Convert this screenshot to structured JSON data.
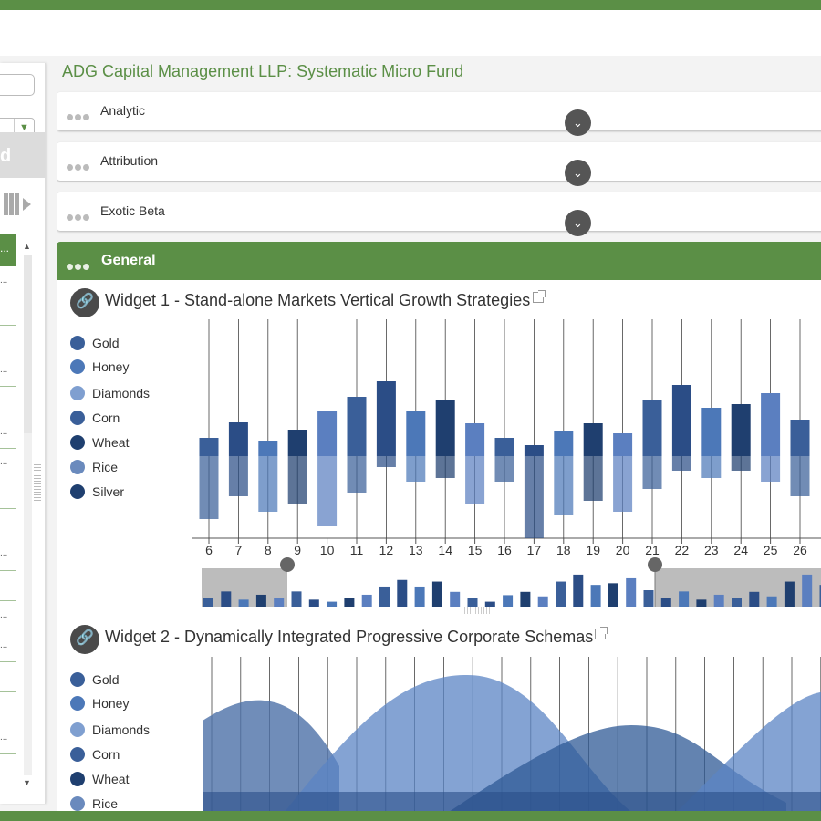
{
  "fund_title": "ADG Capital Management LLP: Systematic Micro Fund",
  "sidebar": {
    "band_letter": "d",
    "row_marker": "...",
    "scroll_up": "▲",
    "scroll_down": "▼",
    "select_arrow": "▼"
  },
  "panels": [
    {
      "label": "Analytic"
    },
    {
      "label": "Attribution"
    },
    {
      "label": "Exotic Beta"
    }
  ],
  "chevron_glyph": "⌄",
  "general": {
    "label": "General",
    "link_glyph": "🔗"
  },
  "colors": {
    "brand_green": "#5b8f46",
    "series": [
      "#3a5f99",
      "#4c78b8",
      "#7f9fd0",
      "#3a5f99",
      "#1f3f6f",
      "#6a8abd",
      "#1f3f6f"
    ]
  },
  "legend": [
    "Gold",
    "Honey",
    "Diamonds",
    "Corn",
    "Wheat",
    "Rice",
    "Silver"
  ],
  "widget1": {
    "title": "Widget 1 - Stand-alone Markets Vertical Growth Strategies"
  },
  "widget2": {
    "title": "Widget 2 - Dynamically Integrated Progressive Corporate Schemas"
  },
  "chart_data": [
    {
      "type": "bar",
      "categories": [
        "6",
        "7",
        "8",
        "9",
        "10",
        "11",
        "12",
        "13",
        "14",
        "15",
        "16",
        "17",
        "18",
        "19",
        "20",
        "21",
        "22",
        "23",
        "24",
        "25",
        "26"
      ],
      "series": [
        {
          "name": "upper",
          "values": [
            20,
            37,
            17,
            29,
            49,
            65,
            82,
            49,
            61,
            36,
            20,
            12,
            28,
            36,
            25,
            61,
            78,
            53,
            57,
            69,
            40
          ]
        },
        {
          "name": "lower",
          "values": [
            -69,
            -44,
            -61,
            -53,
            -77,
            -40,
            -12,
            -28,
            -24,
            -53,
            -28,
            -90,
            -65,
            -49,
            -61,
            -36,
            -16,
            -24,
            -16,
            -28,
            -44
          ]
        }
      ],
      "ylim": [
        -90,
        85
      ],
      "grid": "vertical"
    },
    {
      "type": "area",
      "series": [
        {
          "values": [
            60,
            75,
            55,
            20
          ]
        },
        {
          "values": [
            20,
            65,
            100,
            70,
            30
          ]
        },
        {
          "values": [
            5,
            20,
            65,
            60,
            25
          ]
        },
        {
          "values": [
            10,
            55,
            85
          ]
        }
      ]
    }
  ]
}
